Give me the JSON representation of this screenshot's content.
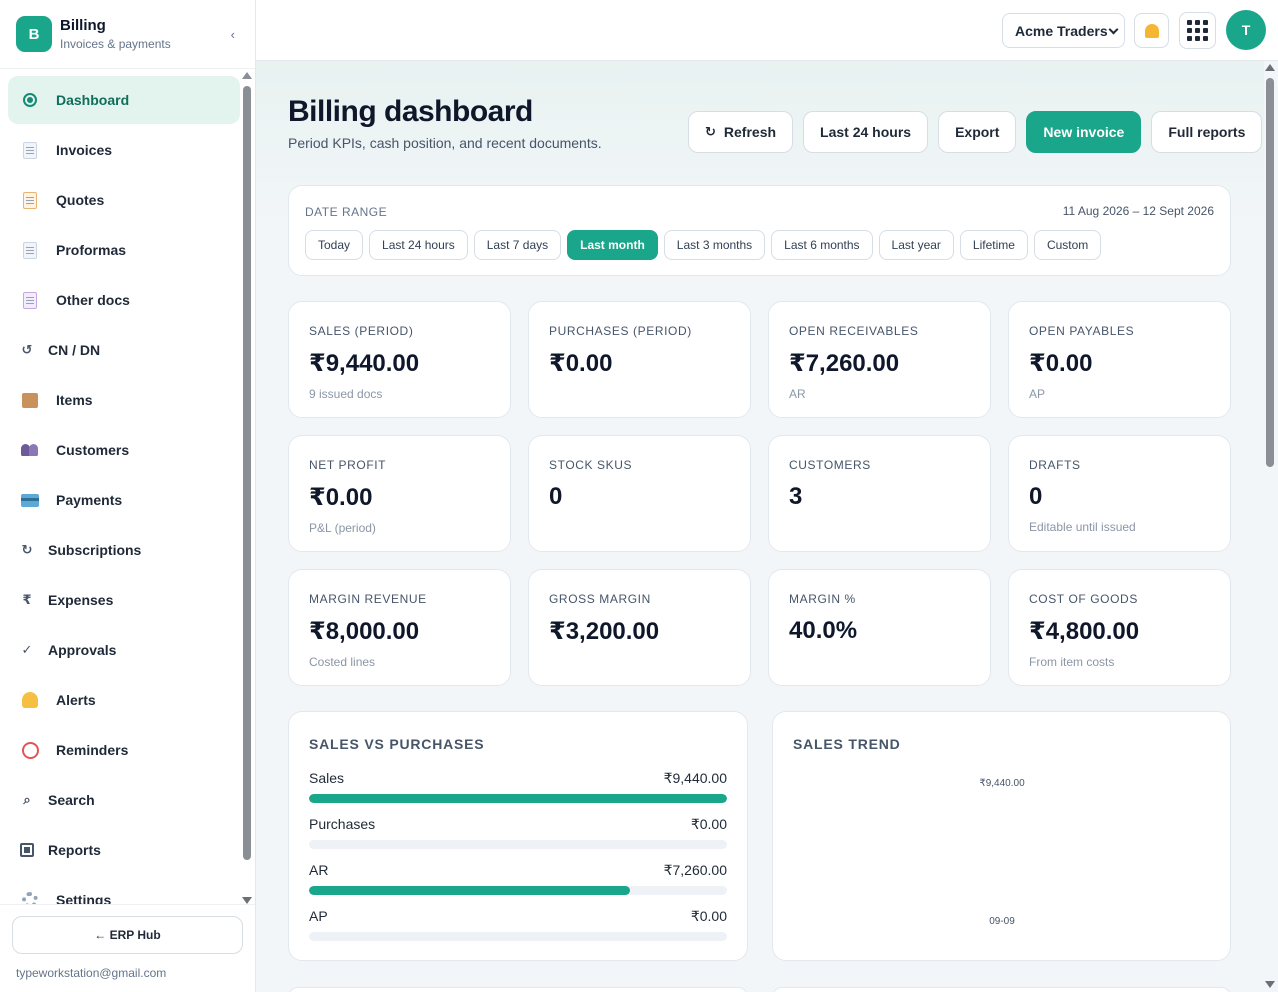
{
  "sidebar": {
    "brand_initial": "B",
    "brand_title": "Billing",
    "brand_subtitle": "Invoices & payments",
    "collapse_glyph": "‹",
    "items": [
      {
        "label": "Dashboard",
        "icon": "dashboard-dot-icon",
        "active": true
      },
      {
        "label": "Invoices",
        "icon": "document-icon"
      },
      {
        "label": "Quotes",
        "icon": "clipboard-icon"
      },
      {
        "label": "Proformas",
        "icon": "document-icon"
      },
      {
        "label": "Other docs",
        "icon": "document-icon"
      },
      {
        "label": "CN / DN",
        "icon": "return-arrow-icon"
      },
      {
        "label": "Items",
        "icon": "package-icon"
      },
      {
        "label": "Customers",
        "icon": "people-icon"
      },
      {
        "label": "Payments",
        "icon": "credit-card-icon"
      },
      {
        "label": "Subscriptions",
        "icon": "refresh-icon"
      },
      {
        "label": "Expenses",
        "icon": "rupee-icon"
      },
      {
        "label": "Approvals",
        "icon": "check-icon"
      },
      {
        "label": "Alerts",
        "icon": "bell-icon"
      },
      {
        "label": "Reminders",
        "icon": "alarm-clock-icon"
      },
      {
        "label": "Search",
        "icon": "search-icon"
      },
      {
        "label": "Reports",
        "icon": "reports-icon"
      },
      {
        "label": "Settings",
        "icon": "gear-icon"
      }
    ],
    "hub_button": "← ERP Hub",
    "user_email": "typeworkstation@gmail.com"
  },
  "topbar": {
    "company": "Acme Traders",
    "avatar_initial": "T"
  },
  "header": {
    "title": "Billing dashboard",
    "subtitle": "Period KPIs, cash position, and recent documents.",
    "actions": {
      "refresh": "Refresh",
      "refresh_glyph": "↻",
      "range": "Last 24 hours",
      "export": "Export",
      "new_invoice": "New invoice",
      "full_reports": "Full reports"
    }
  },
  "date_range": {
    "label": "DATE RANGE",
    "dates": "11 Aug 2026 – 12 Sept 2026",
    "chips": [
      "Today",
      "Last 24 hours",
      "Last 7 days",
      "Last month",
      "Last 3 months",
      "Last 6 months",
      "Last year",
      "Lifetime",
      "Custom"
    ],
    "selected": "Last month"
  },
  "kpis": [
    {
      "label": "SALES (PERIOD)",
      "value": "₹9,440.00",
      "sub": "9 issued docs"
    },
    {
      "label": "PURCHASES (PERIOD)",
      "value": "₹0.00",
      "sub": ""
    },
    {
      "label": "OPEN RECEIVABLES",
      "value": "₹7,260.00",
      "sub": "AR"
    },
    {
      "label": "OPEN PAYABLES",
      "value": "₹0.00",
      "sub": "AP"
    },
    {
      "label": "NET PROFIT",
      "value": "₹0.00",
      "sub": "P&L (period)"
    },
    {
      "label": "STOCK SKUS",
      "value": "0",
      "sub": ""
    },
    {
      "label": "CUSTOMERS",
      "value": "3",
      "sub": ""
    },
    {
      "label": "DRAFTS",
      "value": "0",
      "sub": "Editable until issued"
    },
    {
      "label": "MARGIN REVENUE",
      "value": "₹8,000.00",
      "sub": "Costed lines"
    },
    {
      "label": "GROSS MARGIN",
      "value": "₹3,200.00",
      "sub": ""
    },
    {
      "label": "MARGIN %",
      "value": "40.0%",
      "sub": ""
    },
    {
      "label": "COST OF GOODS",
      "value": "₹4,800.00",
      "sub": "From item costs"
    }
  ],
  "sales_vs_purchases": {
    "title": "SALES VS PURCHASES",
    "rows": [
      {
        "label": "Sales",
        "value": "₹9,440.00",
        "fraction": 1.0
      },
      {
        "label": "Purchases",
        "value": "₹0.00",
        "fraction": 0.0
      },
      {
        "label": "AR",
        "value": "₹7,260.00",
        "fraction": 0.769
      },
      {
        "label": "AP",
        "value": "₹0.00",
        "fraction": 0.0
      }
    ]
  },
  "sales_trend": {
    "title": "SALES TREND",
    "chart_data": {
      "type": "bar",
      "categories": [
        "09-09"
      ],
      "values": [
        9440
      ],
      "data_labels": [
        "₹9,440.00"
      ]
    }
  },
  "colors": {
    "accent": "#1aa68a",
    "active_nav_bg": "#e3f4ef"
  }
}
